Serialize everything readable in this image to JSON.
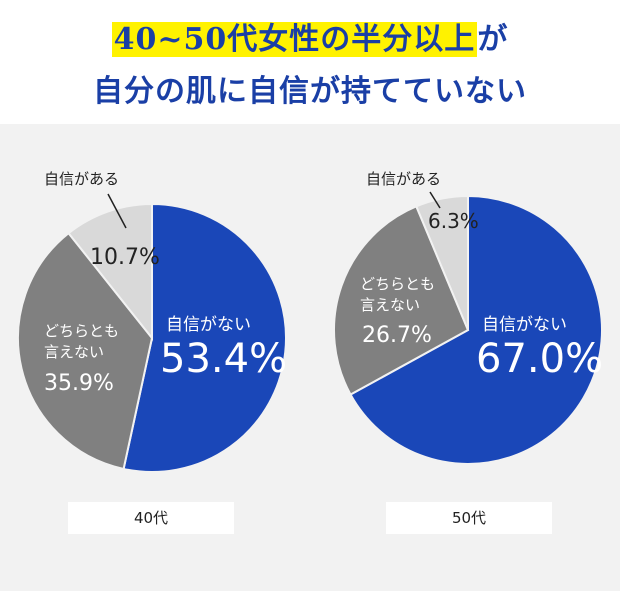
{
  "header": {
    "line1_highlight": "40~50代女性の半分以上",
    "line1_rest": "が",
    "line2": "自分の肌に自信が持てていない"
  },
  "colors": {
    "title": "#1a3fa6",
    "highlight": "#fff200",
    "no_confidence": "#1a47b8",
    "neither": "#808080",
    "confident": "#d9d9d9"
  },
  "chart_data": [
    {
      "type": "pie",
      "group": "40代",
      "slices": [
        {
          "label": "自信がない",
          "value": 53.4,
          "color": "#1a47b8"
        },
        {
          "label": "どちらとも言えない",
          "value": 35.9,
          "color": "#808080"
        },
        {
          "label": "自信がある",
          "value": 10.7,
          "color": "#d9d9d9"
        }
      ]
    },
    {
      "type": "pie",
      "group": "50代",
      "slices": [
        {
          "label": "自信がない",
          "value": 67.0,
          "color": "#1a47b8"
        },
        {
          "label": "どちらとも言えない",
          "value": 26.7,
          "color": "#808080"
        },
        {
          "label": "自信がある",
          "value": 6.3,
          "color": "#d9d9d9"
        }
      ]
    }
  ],
  "labels": {
    "no_confidence": "自信がない",
    "neither_line1": "どちらとも",
    "neither_line2": "言えない",
    "confident": "自信がある"
  }
}
